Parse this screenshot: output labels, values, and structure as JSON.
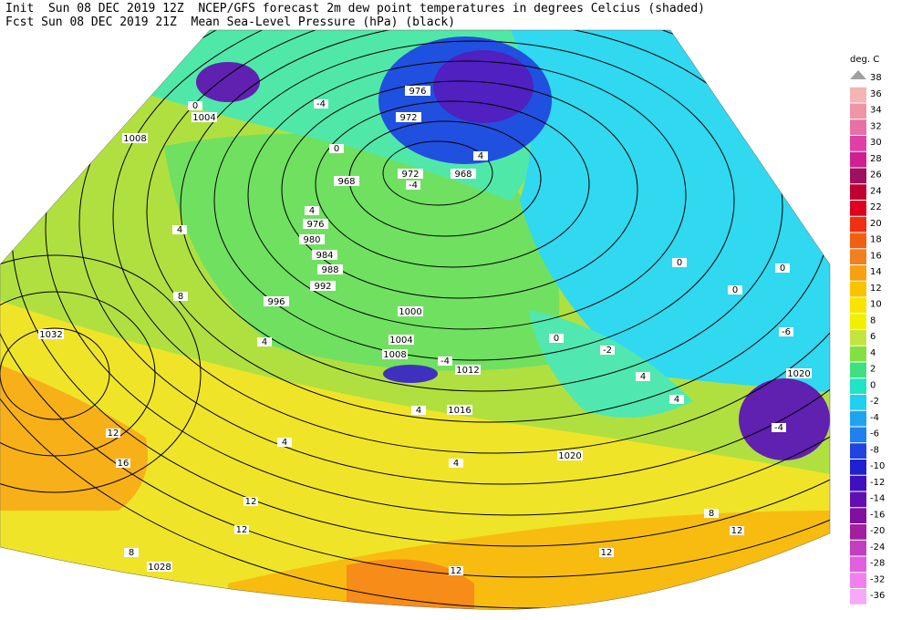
{
  "header": {
    "line1": "Init  Sun 08 DEC 2019 12Z  NCEP/GFS forecast 2m dew point temperatures in degrees Celcius (shaded)",
    "line2": "Fcst Sun 08 DEC 2019 21Z  Mean Sea-Level Pressure (hPa) (black)"
  },
  "legend": {
    "unit": "deg. C",
    "levels": [
      38,
      36,
      34,
      32,
      30,
      28,
      26,
      24,
      22,
      20,
      18,
      16,
      14,
      12,
      10,
      8,
      6,
      4,
      2,
      0,
      -2,
      -4,
      -6,
      -8,
      -10,
      -12,
      -14,
      -16,
      -20,
      -24,
      -28,
      -32,
      -36
    ],
    "colors": [
      "#a0a0a0",
      "#f4b4b4",
      "#f094a8",
      "#e870a4",
      "#e040a4",
      "#d02090",
      "#a01060",
      "#c00030",
      "#e00020",
      "#f03010",
      "#f06010",
      "#f08020",
      "#f8a010",
      "#f8c400",
      "#f8e400",
      "#f0f000",
      "#c4e440",
      "#84e040",
      "#40e080",
      "#20e4c4",
      "#20d0f0",
      "#20a4f0",
      "#2080f0",
      "#2044e0",
      "#2020d0",
      "#4010c0",
      "#6010b0",
      "#8010a0",
      "#a020a0",
      "#c040c0",
      "#e060e0",
      "#f080f0",
      "#f8a8f8"
    ]
  },
  "isobar_labels": [
    "1032",
    "1008",
    "1004",
    "996",
    "992",
    "988",
    "984",
    "980",
    "976",
    "972",
    "968",
    "972",
    "968",
    "976",
    "1000",
    "1004",
    "1008",
    "1012",
    "1016",
    "1020",
    "1020",
    "1028"
  ],
  "dewpoint_labels": [
    "0",
    "-4",
    "-4",
    "0",
    "4",
    "4",
    "4",
    "8",
    "4",
    "0",
    "0",
    "0",
    "-2",
    "-4",
    "4",
    "4",
    "4",
    "12",
    "16",
    "12",
    "12",
    "12",
    "8",
    "8",
    "4",
    "12",
    "12",
    "4",
    "-4",
    "0",
    "-6"
  ]
}
